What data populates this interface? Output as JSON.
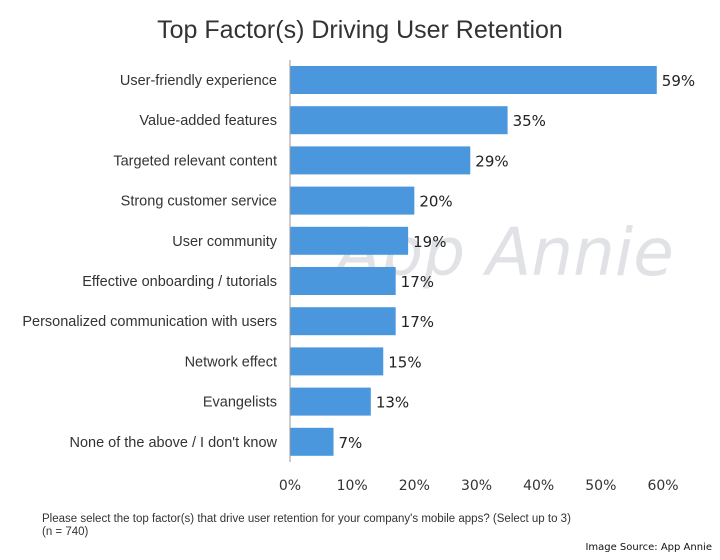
{
  "chart_data": {
    "type": "bar",
    "orientation": "horizontal",
    "title": "Top Factor(s) Driving User Retention",
    "categories": [
      "User-friendly experience",
      "Value-added features",
      "Targeted relevant content",
      "Strong customer service",
      "User community",
      "Effective onboarding / tutorials",
      "Personalized communication with users",
      "Network effect",
      "Evangelists",
      "None of the above / I don't know"
    ],
    "values": [
      59,
      35,
      29,
      20,
      19,
      17,
      17,
      15,
      13,
      7
    ],
    "value_labels": [
      "59%",
      "35%",
      "29%",
      "20%",
      "19%",
      "17%",
      "17%",
      "15%",
      "13%",
      "7%"
    ],
    "xlim": [
      0,
      60
    ],
    "xticks": [
      0,
      10,
      20,
      30,
      40,
      50,
      60
    ],
    "xtick_labels": [
      "0%",
      "10%",
      "20%",
      "30%",
      "40%",
      "50%",
      "60%"
    ],
    "xlabel": "",
    "ylabel": "",
    "bar_color": "#4a97dd",
    "grid": false
  },
  "watermark": "App Annie",
  "footnote": {
    "line1": "Please select the top factor(s) that drive user retention for your company's mobile apps? (Select up to 3)",
    "line2": "(n = 740)"
  },
  "credit": "Image Source: App Annie"
}
